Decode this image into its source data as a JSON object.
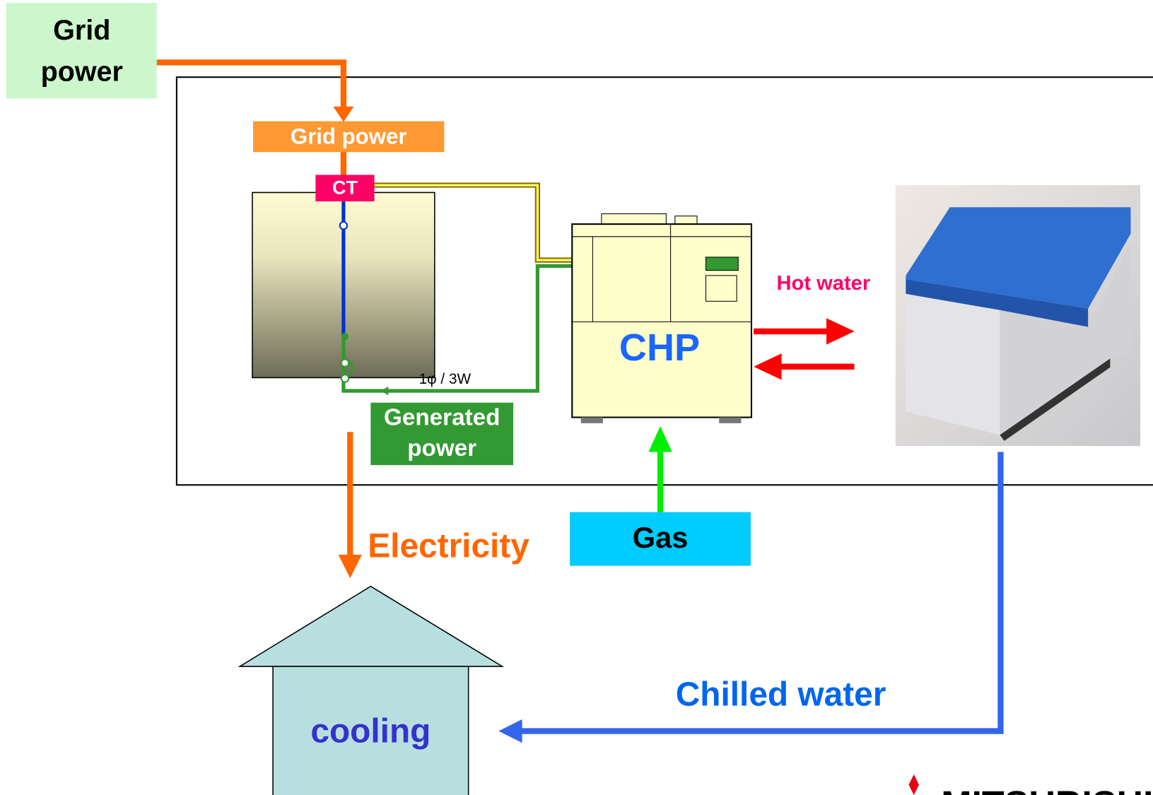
{
  "grid_source": {
    "lines": [
      "Grid",
      "power"
    ]
  },
  "grid_power_label": "Grid power",
  "ct_label": "CT",
  "wiring_label": "1φ / 3W",
  "generated_power": {
    "lines": [
      "Generated",
      "power"
    ]
  },
  "chp_label": "CHP",
  "hot_water_label": "Hot water",
  "electricity_label": "Electricity",
  "gas_label": "Gas",
  "chilled_water_label": "Chilled water",
  "cooling_label": "cooling",
  "logo_text": "MITSUBISHI"
}
